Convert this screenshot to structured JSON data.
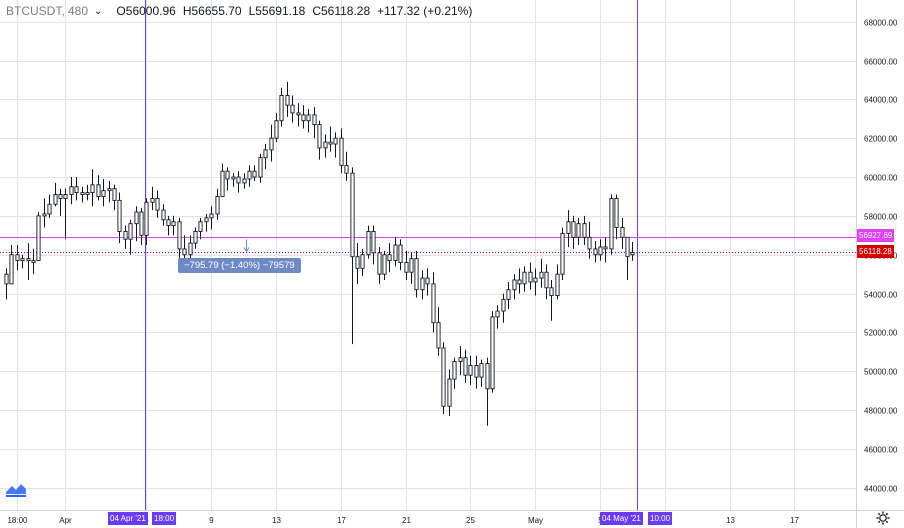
{
  "header": {
    "symbol": "BTCUSDT, 480",
    "chevron": "⌄",
    "open_label": "O",
    "open": "56000.96",
    "high_label": "H",
    "high": "56655.70",
    "low_label": "L",
    "low": "55691.18",
    "close_label": "C",
    "close": "56118.28",
    "change": "+117.32 (+0.21%)"
  },
  "measure_label": "−795.79 (−1.40%) −79579",
  "price_tags": {
    "magenta": "56927.69",
    "current": "56118.28"
  },
  "time_tags": {
    "left_date": "04 Apr '21",
    "left_time": "18:00",
    "right_date": "04 May '21",
    "right_time": "10:00"
  },
  "colors": {
    "candle_up": "#ffffff",
    "candle_down": "#ffffff",
    "candle_stroke": "#131722",
    "vertical_line": "#6a3cf7",
    "magenta_line": "#e040fb",
    "current_line": "#d50000",
    "grid": "#e0e3eb",
    "measure_bg": "#6f89c4"
  },
  "icons": [
    "chevron-down-icon",
    "settings-gear-icon",
    "tradingview-logo-icon"
  ],
  "chart_data": {
    "type": "candlestick",
    "symbol": "BTCUSDT",
    "interval": "480",
    "ylim": [
      43000,
      69000
    ],
    "y_ticks": [
      44000,
      46000,
      48000,
      50000,
      52000,
      54000,
      56000,
      58000,
      60000,
      62000,
      64000,
      66000,
      68000
    ],
    "y_tick_labels": [
      "44000.00",
      "46000.00",
      "48000.00",
      "50000.00",
      "52000.00",
      "54000.00",
      "56000.00",
      "58000.00",
      "60000.00",
      "62000.00",
      "64000.00",
      "66000.00",
      "68000.00"
    ],
    "x_tick_labels": [
      "18:00",
      "Apr",
      "5",
      "9",
      "13",
      "17",
      "21",
      "25",
      "May",
      "5",
      "9",
      "13",
      "17"
    ],
    "x_tick_bar_index": [
      2,
      11,
      26,
      38,
      50,
      62,
      74,
      86,
      98,
      110,
      122,
      134,
      146
    ],
    "magenta_level": 56927.69,
    "current_price": 56118.28,
    "candles": [
      [
        55000,
        55300,
        53700,
        54500
      ],
      [
        54500,
        56500,
        54500,
        56000
      ],
      [
        56000,
        56500,
        55200,
        55700
      ],
      [
        55700,
        56000,
        55300,
        55800
      ],
      [
        55800,
        56600,
        54700,
        55700
      ],
      [
        55600,
        56300,
        55000,
        55700
      ],
      [
        55700,
        58200,
        55700,
        58000
      ],
      [
        58000,
        58900,
        57400,
        58100
      ],
      [
        58100,
        59100,
        57900,
        58600
      ],
      [
        58600,
        59700,
        58500,
        59100
      ],
      [
        59100,
        59400,
        58000,
        58900
      ],
      [
        58900,
        59400,
        56800,
        59100
      ],
      [
        59100,
        60000,
        58600,
        59500
      ],
      [
        59500,
        60000,
        58800,
        59200
      ],
      [
        59200,
        59500,
        58700,
        59100
      ],
      [
        59100,
        59600,
        58800,
        59200
      ],
      [
        59200,
        60400,
        58500,
        59600
      ],
      [
        59600,
        60100,
        58800,
        59000
      ],
      [
        59000,
        59900,
        58500,
        59300
      ],
      [
        59300,
        59800,
        58700,
        59400
      ],
      [
        59400,
        59600,
        58300,
        58800
      ],
      [
        58800,
        59200,
        56600,
        57200
      ],
      [
        57200,
        57500,
        56300,
        56800
      ],
      [
        56800,
        57800,
        56000,
        57600
      ],
      [
        57600,
        58500,
        56700,
        58200
      ],
      [
        58200,
        58400,
        56500,
        57000
      ],
      [
        57000,
        58900,
        56500,
        58700
      ],
      [
        58700,
        59500,
        58300,
        58900
      ],
      [
        58900,
        59300,
        57900,
        58300
      ],
      [
        58300,
        58600,
        57500,
        57800
      ],
      [
        57800,
        58000,
        57000,
        57500
      ],
      [
        57500,
        58000,
        57000,
        57700
      ],
      [
        57700,
        57900,
        55800,
        56300
      ],
      [
        56300,
        57000,
        55600,
        56000
      ],
      [
        56000,
        57000,
        55700,
        56600
      ],
      [
        56600,
        57400,
        56300,
        57200
      ],
      [
        57200,
        57900,
        56800,
        57700
      ],
      [
        57700,
        58100,
        57200,
        57900
      ],
      [
        57900,
        58500,
        57300,
        58100
      ],
      [
        58100,
        59400,
        57800,
        59000
      ],
      [
        59000,
        60700,
        59000,
        60300
      ],
      [
        60300,
        60500,
        59300,
        59900
      ],
      [
        59900,
        60200,
        59500,
        60000
      ],
      [
        60000,
        60300,
        59200,
        59700
      ],
      [
        59700,
        60200,
        59400,
        59900
      ],
      [
        59900,
        60600,
        59500,
        60300
      ],
      [
        60300,
        60600,
        59800,
        60000
      ],
      [
        60000,
        61200,
        59700,
        61000
      ],
      [
        61000,
        61700,
        60400,
        61400
      ],
      [
        61400,
        62700,
        60800,
        62000
      ],
      [
        62000,
        63300,
        61800,
        62900
      ],
      [
        62900,
        64600,
        62600,
        64200
      ],
      [
        64200,
        64900,
        63100,
        63700
      ],
      [
        63700,
        64200,
        62800,
        63300
      ],
      [
        63300,
        63800,
        62600,
        63200
      ],
      [
        63200,
        63700,
        62500,
        62900
      ],
      [
        62900,
        63500,
        62300,
        63200
      ],
      [
        63200,
        63600,
        62000,
        62700
      ],
      [
        62700,
        62900,
        60900,
        61500
      ],
      [
        61500,
        62200,
        61000,
        61800
      ],
      [
        61800,
        62600,
        61300,
        61700
      ],
      [
        61700,
        62300,
        61000,
        62000
      ],
      [
        62000,
        62500,
        60200,
        60600
      ],
      [
        60600,
        61300,
        59800,
        60200
      ],
      [
        60200,
        60500,
        51400,
        55900
      ],
      [
        55900,
        56600,
        54500,
        55300
      ],
      [
        55300,
        56300,
        54900,
        56000
      ],
      [
        56000,
        57500,
        55800,
        57200
      ],
      [
        57200,
        57500,
        55500,
        56100
      ],
      [
        56100,
        56400,
        54500,
        55000
      ],
      [
        55000,
        56200,
        54700,
        56000
      ],
      [
        56000,
        56600,
        55100,
        55700
      ],
      [
        55700,
        56900,
        55400,
        56500
      ],
      [
        56500,
        56800,
        55200,
        55600
      ],
      [
        55600,
        56200,
        54700,
        55100
      ],
      [
        55100,
        56100,
        54500,
        55800
      ],
      [
        55800,
        56200,
        53800,
        54200
      ],
      [
        54200,
        55200,
        53700,
        54800
      ],
      [
        54800,
        55300,
        53900,
        54500
      ],
      [
        54500,
        55100,
        52000,
        52500
      ],
      [
        52500,
        53300,
        50800,
        51200
      ],
      [
        51200,
        51500,
        47800,
        48200
      ],
      [
        48200,
        50100,
        47700,
        49600
      ],
      [
        49600,
        50700,
        49100,
        50500
      ],
      [
        50500,
        51300,
        49800,
        50700
      ],
      [
        50700,
        51100,
        49400,
        49800
      ],
      [
        49800,
        50800,
        49300,
        50300
      ],
      [
        50300,
        50800,
        49100,
        49700
      ],
      [
        49700,
        50600,
        49200,
        50400
      ],
      [
        50400,
        50700,
        47200,
        49100
      ],
      [
        49100,
        53100,
        48900,
        52800
      ],
      [
        52800,
        53400,
        52200,
        53100
      ],
      [
        53100,
        54000,
        52500,
        53700
      ],
      [
        53700,
        54600,
        53200,
        54200
      ],
      [
        54200,
        55000,
        53700,
        54700
      ],
      [
        54700,
        55300,
        54000,
        54500
      ],
      [
        54500,
        55400,
        54100,
        55100
      ],
      [
        55100,
        55600,
        54200,
        54600
      ],
      [
        54600,
        55300,
        53900,
        54800
      ],
      [
        54800,
        55800,
        54300,
        55100
      ],
      [
        55100,
        55500,
        53700,
        54300
      ],
      [
        54300,
        54700,
        52600,
        53900
      ],
      [
        53900,
        55500,
        53700,
        55000
      ],
      [
        55000,
        57400,
        54700,
        57100
      ],
      [
        57100,
        58300,
        56400,
        57700
      ],
      [
        57700,
        58000,
        56300,
        56900
      ],
      [
        56900,
        57900,
        56500,
        57600
      ],
      [
        57600,
        58000,
        56500,
        56900
      ],
      [
        56900,
        57700,
        55800,
        56300
      ],
      [
        56300,
        56700,
        55600,
        56000
      ],
      [
        56000,
        56800,
        55700,
        56400
      ],
      [
        56400,
        56900,
        55600,
        56300
      ],
      [
        56300,
        59100,
        56000,
        58900
      ],
      [
        58900,
        59100,
        56800,
        57400
      ],
      [
        57400,
        57900,
        56300,
        56900
      ],
      [
        56900,
        56900,
        54700,
        55900
      ],
      [
        56000.96,
        56655.7,
        55691.18,
        56118.28
      ]
    ]
  }
}
